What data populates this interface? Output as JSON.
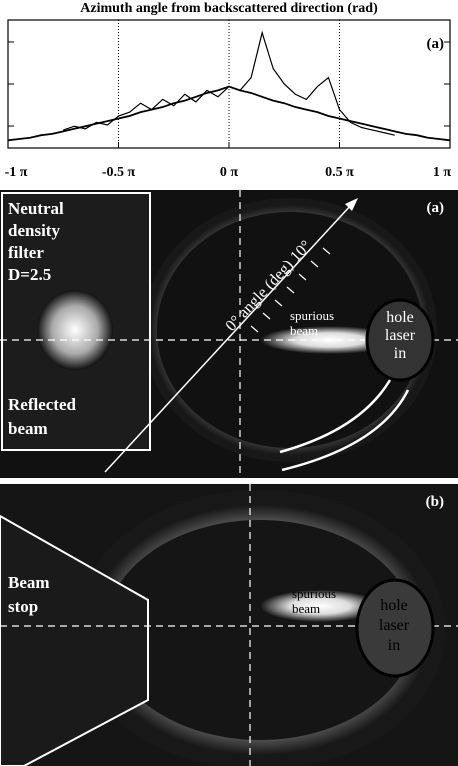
{
  "chart_data": {
    "type": "line",
    "title": "Azimuth angle from backscattered direction (rad)",
    "annotation": "(a)",
    "x": [
      -1,
      -0.95,
      -0.9,
      -0.85,
      -0.8,
      -0.75,
      -0.7,
      -0.65,
      -0.6,
      -0.55,
      -0.5,
      -0.45,
      -0.4,
      -0.35,
      -0.3,
      -0.25,
      -0.2,
      -0.15,
      -0.1,
      -0.05,
      0,
      0.05,
      0.1,
      0.15,
      0.2,
      0.25,
      0.3,
      0.35,
      0.4,
      0.45,
      0.5,
      0.55,
      0.6,
      0.65,
      0.7,
      0.75,
      0.8,
      0.85,
      0.9,
      0.95,
      1
    ],
    "series": [
      {
        "color": "#000000",
        "values": [
          0.06,
          0.07,
          0.08,
          0.1,
          0.11,
          0.13,
          0.15,
          0.17,
          0.19,
          0.21,
          0.23,
          0.25,
          0.28,
          0.3,
          0.32,
          0.35,
          0.37,
          0.4,
          0.43,
          0.45,
          0.48,
          0.45,
          0.43,
          0.4,
          0.37,
          0.35,
          0.32,
          0.3,
          0.28,
          0.25,
          0.23,
          0.21,
          0.19,
          0.17,
          0.15,
          0.13,
          0.11,
          0.1,
          0.08,
          0.07,
          0.06
        ]
      },
      {
        "color": "#000000",
        "values": [
          null,
          null,
          null,
          null,
          null,
          0.14,
          0.17,
          0.15,
          0.2,
          0.18,
          0.25,
          0.28,
          0.35,
          0.3,
          0.38,
          0.33,
          0.42,
          0.36,
          0.45,
          0.4,
          0.48,
          0.45,
          0.55,
          0.9,
          0.62,
          0.5,
          0.42,
          0.38,
          0.48,
          0.55,
          0.3,
          0.2,
          0.16,
          0.14,
          0.12,
          0.1,
          null,
          null,
          null,
          null,
          null
        ]
      }
    ],
    "xlim": [
      -1,
      1
    ],
    "xticks": [
      {
        "value": -1,
        "label": "-1 π"
      },
      {
        "value": -0.5,
        "label": "-0.5 π"
      },
      {
        "value": 0,
        "label": "0 π"
      },
      {
        "value": 0.5,
        "label": "0.5 π"
      },
      {
        "value": 1,
        "label": "1 π"
      }
    ],
    "ylim": [
      0,
      1
    ],
    "grid": true
  },
  "panels": [
    {
      "label": "(a)",
      "filter": [
        "Neutral",
        "density",
        "filter",
        "D=2.5"
      ],
      "reflected": [
        "Reflected",
        "beam"
      ],
      "arrow": "0° angle (deg) 10°",
      "spurious": [
        "spurious",
        "beam"
      ],
      "hole": [
        "hole",
        "laser",
        "in"
      ]
    },
    {
      "label": "(b)",
      "stop": [
        "Beam",
        "stop"
      ],
      "spurious": [
        "spurious",
        "beam"
      ],
      "hole": [
        "hole",
        "laser",
        "in"
      ]
    }
  ]
}
